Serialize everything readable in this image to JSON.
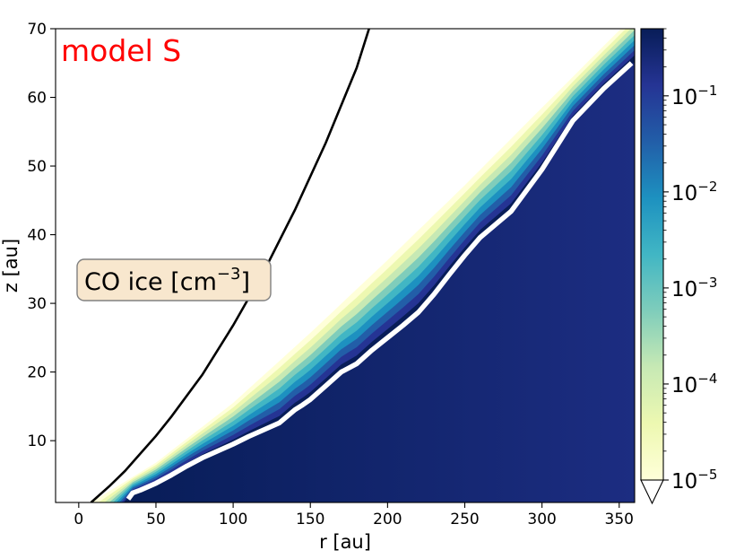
{
  "chart_data": {
    "type": "heatmap",
    "title": "",
    "model_label": "model S",
    "quantity_label_prefix": "CO ice [cm",
    "quantity_label_exponent": "−3",
    "quantity_label_suffix": "]",
    "xlabel": "r [au]",
    "ylabel": "z [au]",
    "xlim": [
      -15,
      360
    ],
    "ylim": [
      1,
      70
    ],
    "x_ticks": [
      0,
      50,
      100,
      150,
      200,
      250,
      300,
      350
    ],
    "y_ticks": [
      10,
      20,
      30,
      40,
      50,
      60,
      70
    ],
    "colorbar": {
      "scale": "log",
      "range": [
        1e-05,
        0.5
      ],
      "extend": "min",
      "tick_exponents": [
        "−5",
        "−4",
        "−3",
        "−2",
        "−1"
      ],
      "tick_values": [
        1e-05,
        0.0001,
        0.001,
        0.01,
        0.1
      ],
      "tick_base": "10",
      "colormap": [
        "#ffffd9",
        "#edf8b1",
        "#c7e9b4",
        "#7fcdbb",
        "#41b6c4",
        "#1d91c0",
        "#225ea8",
        "#253494",
        "#081d58"
      ]
    },
    "series": [
      {
        "type": "black-curve",
        "x": [
          8,
          20,
          30,
          50,
          60,
          80,
          100,
          120,
          140,
          160,
          180,
          188
        ],
        "y": [
          1,
          3.4,
          5.6,
          10.7,
          13.5,
          19.6,
          26.8,
          34.7,
          43.6,
          53.4,
          64.3,
          70
        ]
      },
      {
        "type": "white-contour",
        "x": [
          32,
          35,
          40,
          50,
          60,
          70,
          80,
          90,
          100,
          110,
          120,
          130,
          140,
          145,
          150,
          160,
          170,
          180,
          190,
          200,
          210,
          220,
          230,
          240,
          250,
          260,
          280,
          300,
          320,
          340,
          358
        ],
        "y": [
          1.5,
          2.4,
          2.8,
          3.8,
          5,
          6.3,
          7.5,
          8.5,
          9.5,
          10.6,
          11.6,
          12.6,
          14.5,
          15.2,
          16,
          18,
          20,
          21.2,
          23.2,
          25,
          26.8,
          28.7,
          31.3,
          34.2,
          37,
          39.6,
          43.4,
          49.5,
          56.6,
          61.3,
          65
        ]
      }
    ],
    "ice_band": {
      "upper_edge": {
        "x": [
          8,
          50,
          100,
          150,
          200,
          250,
          300,
          340,
          360
        ],
        "y": [
          1,
          6.8,
          15.5,
          25.7,
          36.3,
          47.2,
          58.5,
          67.5,
          72
        ]
      }
    }
  }
}
